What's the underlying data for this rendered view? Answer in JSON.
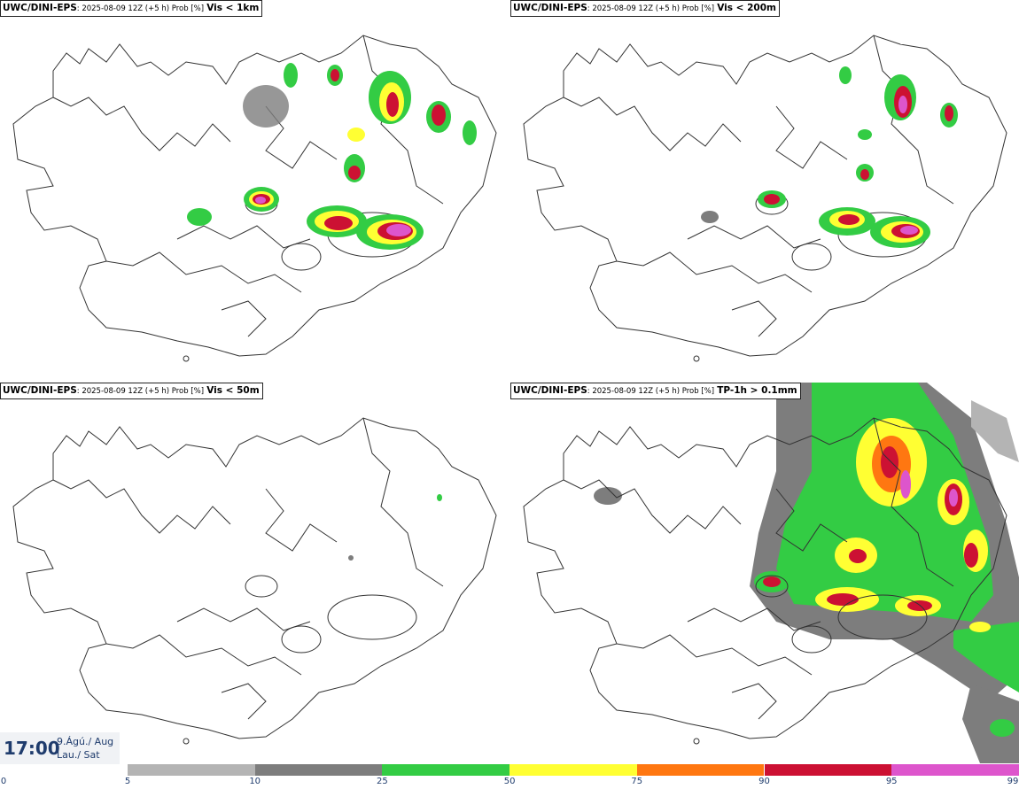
{
  "panels": [
    {
      "model": "UWC/DINI-EPS",
      "meta": ": 2025-08-09 12Z (+5 h) Prob [%]",
      "variable": "Vis < 1km"
    },
    {
      "model": "UWC/DINI-EPS",
      "meta": ": 2025-08-09 12Z (+5 h) Prob [%]",
      "variable": "Vis < 200m"
    },
    {
      "model": "UWC/DINI-EPS",
      "meta": ": 2025-08-09 12Z (+5 h) Prob [%]",
      "variable": "Vis < 50m"
    },
    {
      "model": "UWC/DINI-EPS",
      "meta": ": 2025-08-09 12Z (+5 h) Prob [%]",
      "variable": "TP-1h > 0.1mm"
    }
  ],
  "time": {
    "clock": "17:00",
    "date_line1": "9.Ágú./ Aug",
    "date_line2": "Lau./ Sat"
  },
  "colorbar": {
    "ticks": [
      "0",
      "5",
      "10",
      "25",
      "50",
      "75",
      "90",
      "95",
      "99"
    ],
    "colors": [
      "#ffffff",
      "#b4b4b4",
      "#7d7d7d",
      "#33cc44",
      "#ffff33",
      "#ff7711",
      "#cc1133",
      "#dd55cc"
    ]
  },
  "colors": {
    "outline": "#333333",
    "text_accent": "#1f3c6d"
  }
}
